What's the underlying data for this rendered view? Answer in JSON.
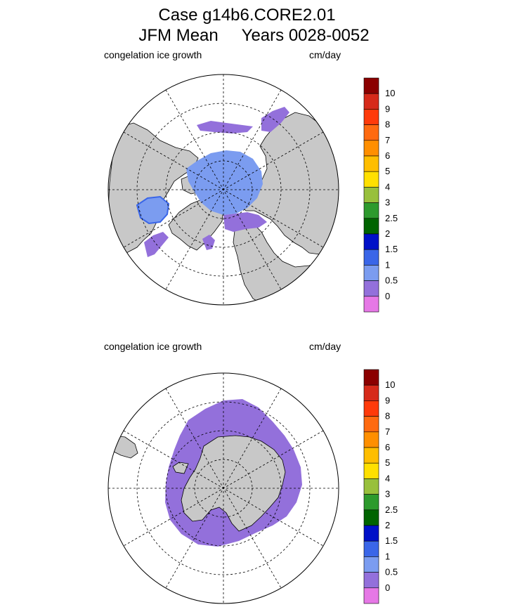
{
  "title": {
    "line1": "Case g14b6.CORE2.01",
    "line2": "JFM Mean     Years 0028-0052"
  },
  "panels": [
    {
      "subtitle": "congelation ice growth",
      "units": "cm/day"
    },
    {
      "subtitle": "congelation ice growth",
      "units": "cm/day"
    }
  ],
  "legend": {
    "labels": [
      "10",
      "9",
      "8",
      "7",
      "6",
      "5",
      "4",
      "3",
      "2.5",
      "2",
      "1.5",
      "1",
      "0.5",
      "0"
    ],
    "colors": [
      "#8b0000",
      "#d62a1a",
      "#ff3a0a",
      "#ff6a10",
      "#ff8f00",
      "#ffbe00",
      "#ffe000",
      "#98c03c",
      "#2d9a2d",
      "#006400",
      "#0010c8",
      "#3a66e8",
      "#7b9cf0",
      "#9370db",
      "#e678e6"
    ]
  },
  "colors": {
    "land": "#c8c8c8",
    "ocean": "#ffffff",
    "ice_light_blue": "#7b9cf0",
    "ice_purple": "#9370db"
  }
}
